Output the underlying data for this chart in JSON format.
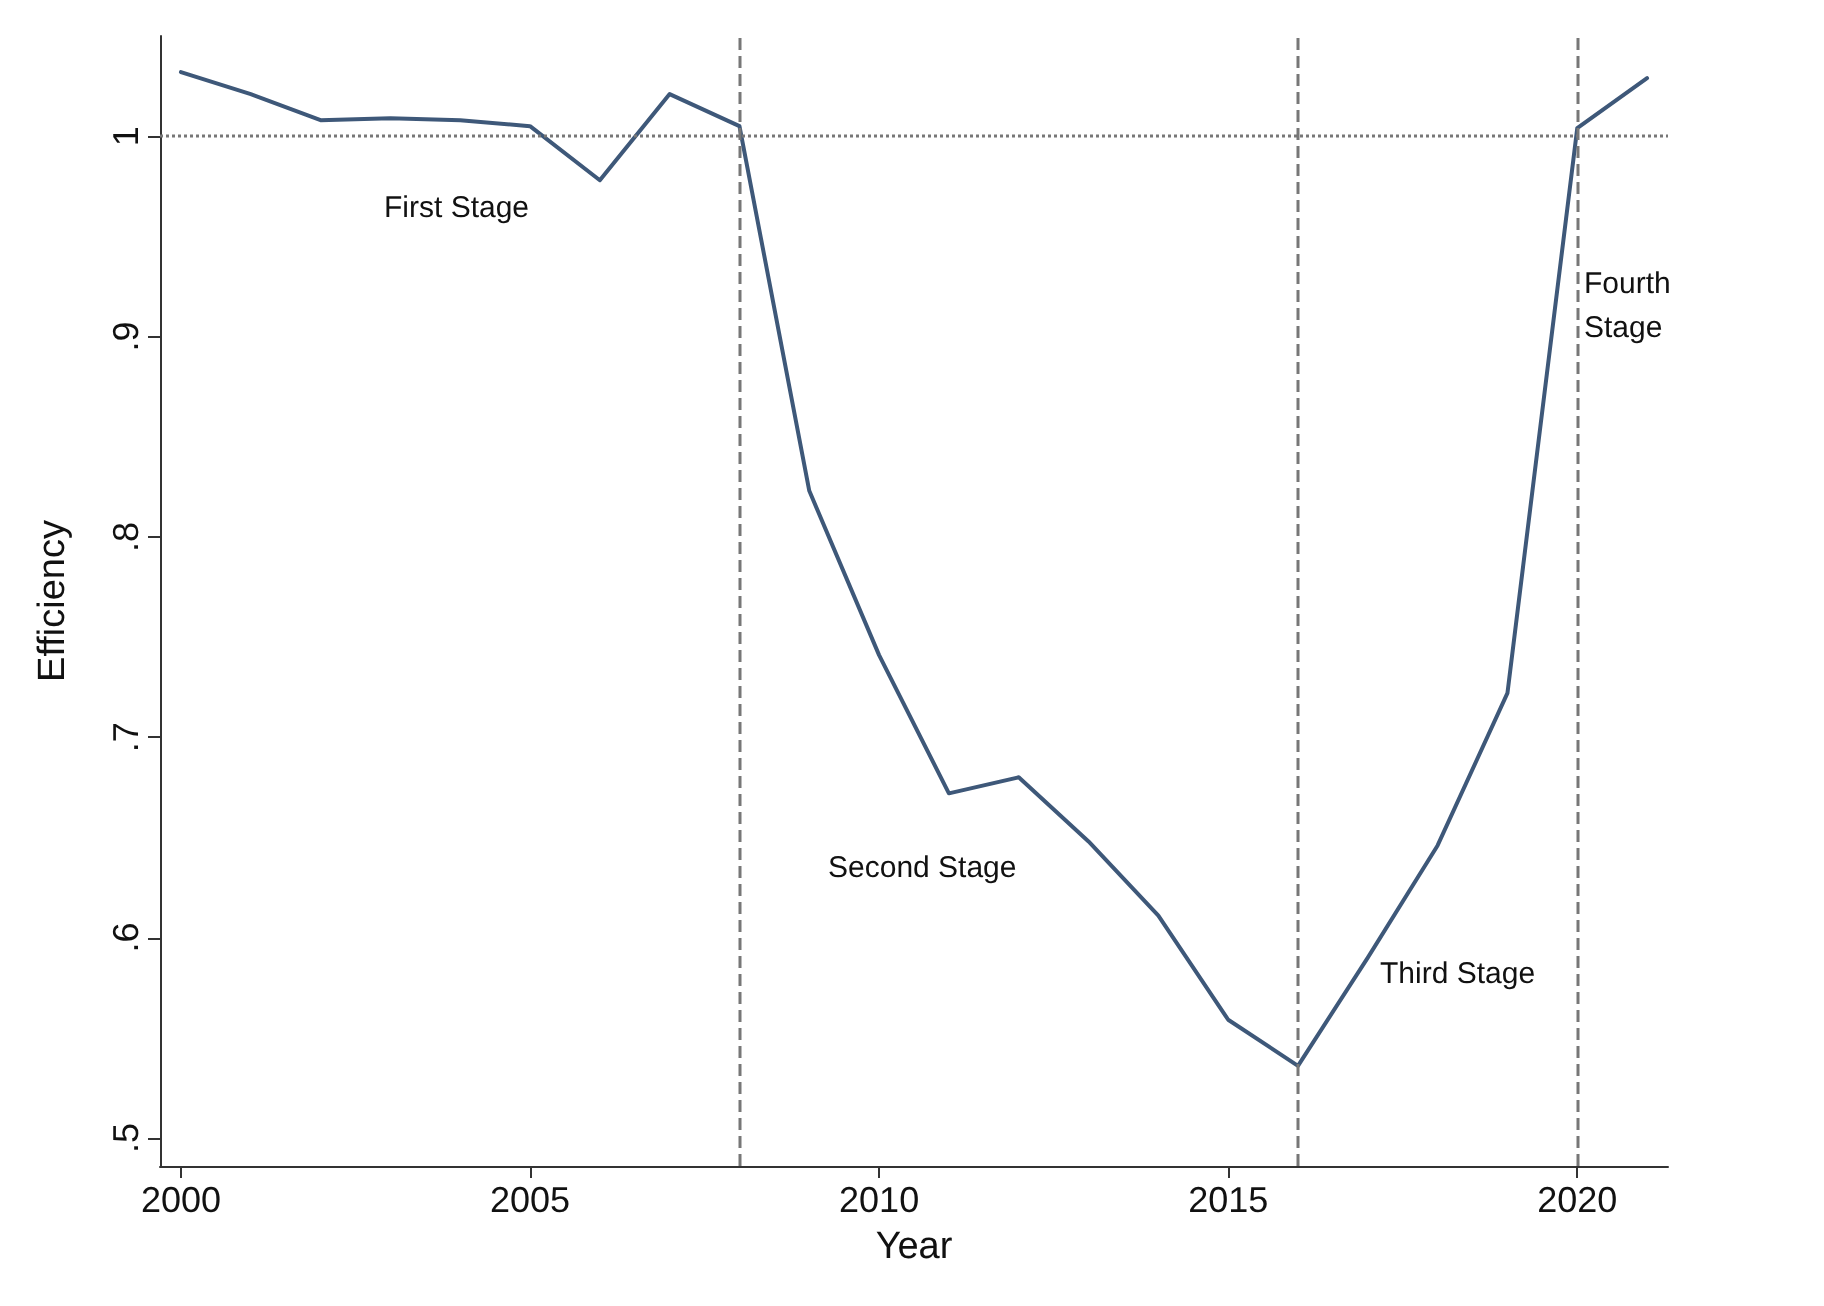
{
  "chart_data": {
    "type": "line",
    "xlabel": "Year",
    "ylabel": "Efficiency",
    "x": [
      2000,
      2001,
      2002,
      2003,
      2004,
      2005,
      2006,
      2007,
      2008,
      2009,
      2010,
      2011,
      2012,
      2013,
      2014,
      2015,
      2016,
      2017,
      2018,
      2019,
      2020,
      2021
    ],
    "series": [
      {
        "color": "#3e5879",
        "values": [
          1.032,
          1.021,
          1.008,
          1.009,
          1.008,
          1.005,
          0.978,
          1.021,
          1.005,
          0.823,
          0.741,
          0.672,
          0.68,
          0.648,
          0.611,
          0.559,
          0.536,
          0.59,
          0.646,
          0.722,
          1.004,
          1.029
        ]
      }
    ],
    "xlim": [
      1999.7,
      2021.3
    ],
    "xticks": [
      2000,
      2005,
      2010,
      2015,
      2020
    ],
    "ylim": [
      0.486,
      1.05
    ],
    "yticks": [
      {
        "value": 0.5,
        "label": ".5"
      },
      {
        "value": 0.6,
        "label": ".6"
      },
      {
        "value": 0.7,
        "label": ".7"
      },
      {
        "value": 0.8,
        "label": ".8"
      },
      {
        "value": 0.9,
        "label": ".9"
      },
      1
    ],
    "grid": false,
    "marker": "none",
    "line_style": "solid",
    "ref_lines": [
      {
        "axis": "y",
        "value": 1,
        "line_style": "dotted",
        "color": "#777777"
      },
      {
        "axis": "x",
        "value": 2008,
        "line_style": "dashed",
        "color": "#777777"
      },
      {
        "axis": "x",
        "value": 2016,
        "line_style": "dashed",
        "color": "#777777"
      },
      {
        "axis": "x",
        "value": 2020,
        "line_style": "dashed",
        "color": "#777777"
      }
    ],
    "annotations": [
      "First Stage",
      "Second Stage",
      "Third Stage",
      "Fourth\nStage"
    ]
  }
}
